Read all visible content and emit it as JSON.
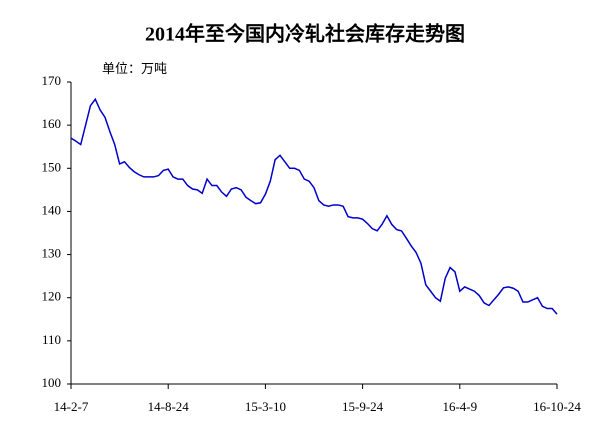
{
  "chart_data": {
    "type": "line",
    "title": "2014年至今国内冷轧社会库存走势图",
    "unit_label": "单位：万吨",
    "categories": [
      "14-2-7",
      null,
      null,
      null,
      null,
      null,
      null,
      null,
      null,
      null,
      null,
      null,
      null,
      null,
      null,
      null,
      null,
      null,
      null,
      null,
      "14-8-24",
      null,
      null,
      null,
      null,
      null,
      null,
      null,
      null,
      null,
      null,
      null,
      null,
      null,
      null,
      null,
      null,
      null,
      null,
      null,
      "15-3-10",
      null,
      null,
      null,
      null,
      null,
      null,
      null,
      null,
      null,
      null,
      null,
      null,
      null,
      null,
      null,
      null,
      null,
      null,
      null,
      "15-9-24",
      null,
      null,
      null,
      null,
      null,
      null,
      null,
      null,
      null,
      null,
      null,
      null,
      null,
      null,
      null,
      null,
      null,
      null,
      null,
      "16-4-9",
      null,
      null,
      null,
      null,
      null,
      null,
      null,
      null,
      null,
      null,
      null,
      null,
      null,
      null,
      null,
      null,
      null,
      null,
      null,
      "16-10-24"
    ],
    "values": [
      157,
      156.3,
      155.5,
      160,
      164.5,
      166,
      163.5,
      161.8,
      158.5,
      155.5,
      151,
      151.5,
      150.2,
      149.2,
      148.5,
      148,
      148,
      148,
      148.3,
      149.5,
      149.8,
      148,
      147.5,
      147.5,
      146,
      145.2,
      145,
      144.2,
      147.5,
      146,
      146,
      144.5,
      143.5,
      145.2,
      145.5,
      145,
      143.3,
      142.5,
      141.8,
      142,
      144,
      147,
      152,
      153,
      151.5,
      150,
      150,
      149.5,
      147.5,
      147,
      145.5,
      142.5,
      141.5,
      141.2,
      141.5,
      141.5,
      141.2,
      138.8,
      138.5,
      138.5,
      138.2,
      137.2,
      136,
      135.5,
      137,
      139,
      137,
      135.8,
      135.5,
      133.8,
      132,
      130.5,
      128,
      123,
      121.5,
      120,
      119.2,
      124.5,
      127,
      126,
      121.5,
      122.5,
      122,
      121.5,
      120.5,
      118.8,
      118.2,
      119.5,
      120.8,
      122.3,
      122.5,
      122.2,
      121.5,
      119,
      119,
      119.5,
      120,
      118,
      117.5,
      117.5,
      116.2
    ],
    "color": "#0000cc",
    "ylim": [
      100,
      170
    ],
    "yticks": [
      100,
      110,
      120,
      130,
      140,
      150,
      160,
      170
    ],
    "grid": false
  }
}
